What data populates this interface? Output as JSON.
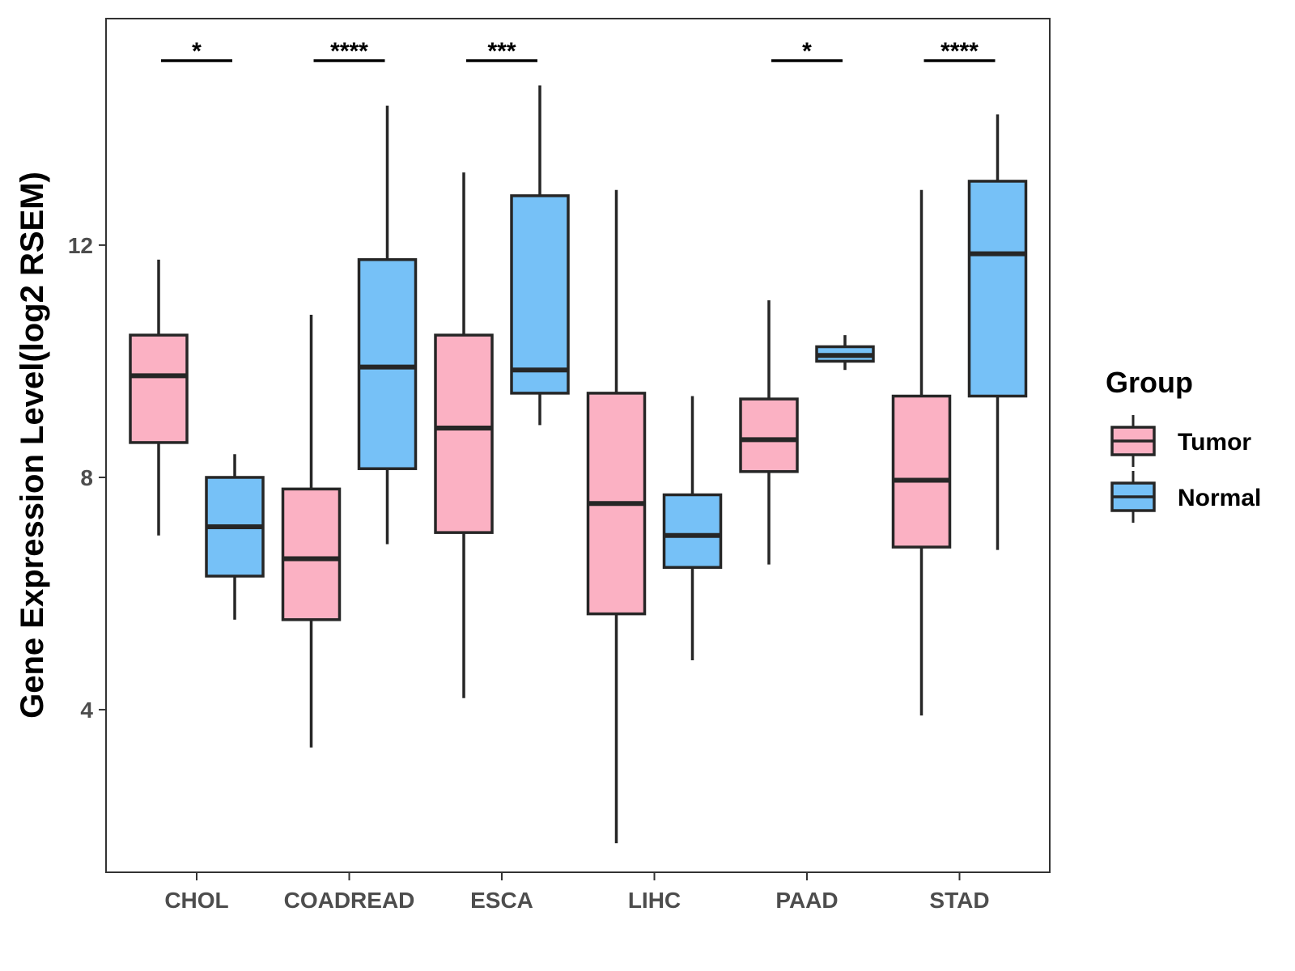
{
  "chart_data": {
    "type": "boxplot",
    "ylabel": "Gene Expression Level(log2 RSEM)",
    "xlabel": "",
    "ylim": [
      1.2,
      15.9
    ],
    "yticks": [
      4,
      8,
      12
    ],
    "categories": [
      "CHOL",
      "COADREAD",
      "ESCA",
      "LIHC",
      "PAAD",
      "STAD"
    ],
    "legend": {
      "title": "Group",
      "position": "right",
      "entries": [
        {
          "name": "Tumor",
          "color": "#fbb1c3"
        },
        {
          "name": "Normal",
          "color": "#76c1f7"
        }
      ]
    },
    "series": [
      {
        "name": "Tumor",
        "color": "#fbb1c3",
        "boxes": [
          {
            "category": "CHOL",
            "min": 7.0,
            "q1": 8.6,
            "median": 9.75,
            "q3": 10.45,
            "max": 11.75
          },
          {
            "category": "COADREAD",
            "min": 3.35,
            "q1": 5.55,
            "median": 6.6,
            "q3": 7.8,
            "max": 10.8
          },
          {
            "category": "ESCA",
            "min": 4.2,
            "q1": 7.05,
            "median": 8.85,
            "q3": 10.45,
            "max": 13.25
          },
          {
            "category": "LIHC",
            "min": 1.7,
            "q1": 5.65,
            "median": 7.55,
            "q3": 9.45,
            "max": 12.95
          },
          {
            "category": "PAAD",
            "min": 6.5,
            "q1": 8.1,
            "median": 8.65,
            "q3": 9.35,
            "max": 11.05
          },
          {
            "category": "STAD",
            "min": 3.9,
            "q1": 6.8,
            "median": 7.95,
            "q3": 9.4,
            "max": 12.95
          }
        ]
      },
      {
        "name": "Normal",
        "color": "#76c1f7",
        "boxes": [
          {
            "category": "CHOL",
            "min": 5.55,
            "q1": 6.3,
            "median": 7.15,
            "q3": 8.0,
            "max": 8.4
          },
          {
            "category": "COADREAD",
            "min": 6.85,
            "q1": 8.15,
            "median": 9.9,
            "q3": 11.75,
            "max": 14.4
          },
          {
            "category": "ESCA",
            "min": 8.9,
            "q1": 9.45,
            "median": 9.85,
            "q3": 12.85,
            "max": 14.75
          },
          {
            "category": "LIHC",
            "min": 4.85,
            "q1": 6.45,
            "median": 7.0,
            "q3": 7.7,
            "max": 9.4
          },
          {
            "category": "PAAD",
            "min": 9.85,
            "q1": 10.0,
            "median": 10.1,
            "q3": 10.25,
            "max": 10.45
          },
          {
            "category": "STAD",
            "min": 6.75,
            "q1": 9.4,
            "median": 11.85,
            "q3": 13.1,
            "max": 14.25
          }
        ]
      }
    ],
    "significance": [
      {
        "category": "CHOL",
        "label": "*"
      },
      {
        "category": "COADREAD",
        "label": "****"
      },
      {
        "category": "ESCA",
        "label": "***"
      },
      {
        "category": "PAAD",
        "label": "*"
      },
      {
        "category": "STAD",
        "label": "****"
      }
    ],
    "grid": false
  }
}
